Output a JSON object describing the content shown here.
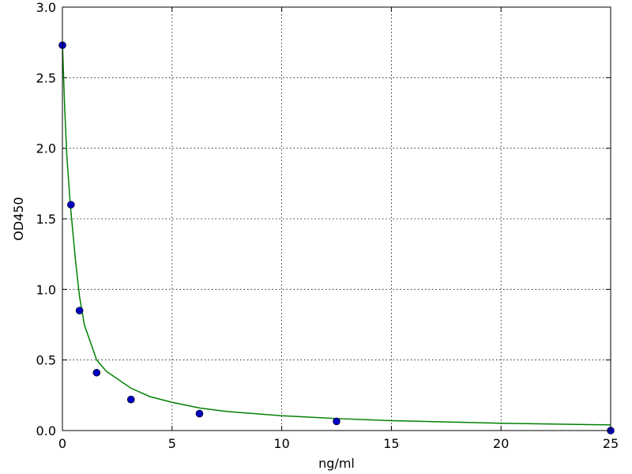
{
  "chart_data": {
    "type": "scatter",
    "xlabel": "ng/ml",
    "ylabel": "OD450",
    "xlim": [
      0,
      25
    ],
    "ylim": [
      0,
      3
    ],
    "xticks": [
      0,
      5,
      10,
      15,
      20,
      25
    ],
    "yticks": [
      {
        "value": 0,
        "label": "0.0"
      },
      {
        "value": 0.5,
        "label": "0.5"
      },
      {
        "value": 1,
        "label": "1.0"
      },
      {
        "value": 1.5,
        "label": "1.5"
      },
      {
        "value": 2,
        "label": "2.0"
      },
      {
        "value": 2.5,
        "label": "2.5"
      },
      {
        "value": 3,
        "label": "3.0"
      }
    ],
    "grid": true,
    "series": [
      {
        "style": "line",
        "color": "#008000",
        "x": [
          0,
          0.1,
          0.2,
          0.36,
          0.6,
          0.78,
          1,
          1.56,
          2,
          3.125,
          4,
          5,
          6.25,
          7.5,
          10,
          12.5,
          15,
          20,
          25
        ],
        "values": [
          2.75,
          2.3,
          1.95,
          1.6,
          1.2,
          0.95,
          0.75,
          0.5,
          0.42,
          0.3,
          0.24,
          0.2,
          0.16,
          0.135,
          0.105,
          0.085,
          0.07,
          0.052,
          0.04
        ]
      },
      {
        "style": "marker",
        "color": "#0000bf",
        "x": [
          0,
          0.39,
          0.78,
          1.56,
          3.125,
          6.25,
          12.5,
          25
        ],
        "values": [
          2.73,
          1.6,
          0.85,
          0.41,
          0.22,
          0.12,
          0.065,
          0.0
        ]
      }
    ]
  }
}
